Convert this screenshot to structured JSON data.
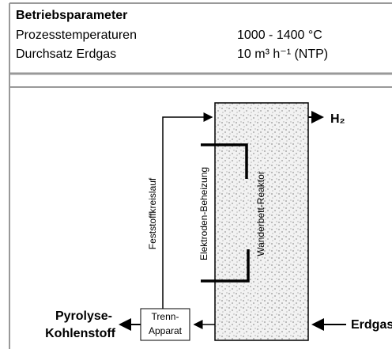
{
  "table": {
    "title": "Betriebsparameter",
    "rows": [
      [
        "Prozesstemperaturen",
        "1000 - 1400 °C"
      ],
      [
        "Durchsatz Erdgas",
        "10 m³ h⁻¹ (NTP)"
      ]
    ]
  },
  "nodes": {
    "reactor": "Wanderbett-Reaktor",
    "heating": "Elektroden-Beheizung",
    "loop": "Feststoffkreislauf",
    "separator": [
      "Trenn-",
      "Apparat"
    ],
    "product": [
      "Pyrolyse-",
      "Kohlenstoff"
    ],
    "hydrogen": "H₂",
    "feed": "Erdgas"
  }
}
